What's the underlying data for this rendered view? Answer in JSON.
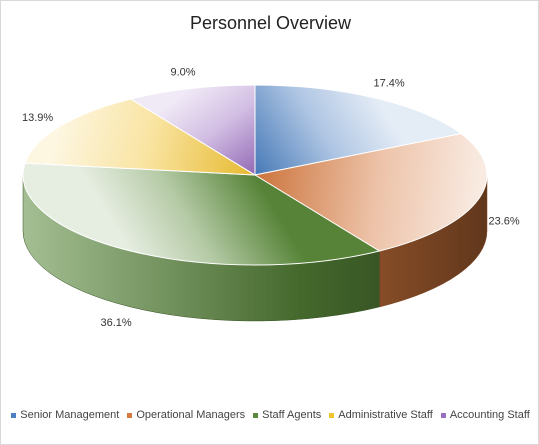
{
  "chart_data": {
    "type": "pie",
    "title": "Personnel Overview",
    "categories": [
      "Senior Management",
      "Operational Managers",
      "Staff Agents",
      "Administrative Staff",
      "Accounting Staff"
    ],
    "values": [
      17.4,
      23.6,
      36.1,
      13.9,
      9.0
    ],
    "value_labels": [
      "17.4%",
      "23.6%",
      "36.1%",
      "13.9%",
      "9.0%"
    ],
    "colors": [
      "#4a7fc1",
      "#d77a3f",
      "#5a8a3a",
      "#f2c330",
      "#9b6fc0"
    ],
    "legend_position": "bottom",
    "style": "3d"
  }
}
